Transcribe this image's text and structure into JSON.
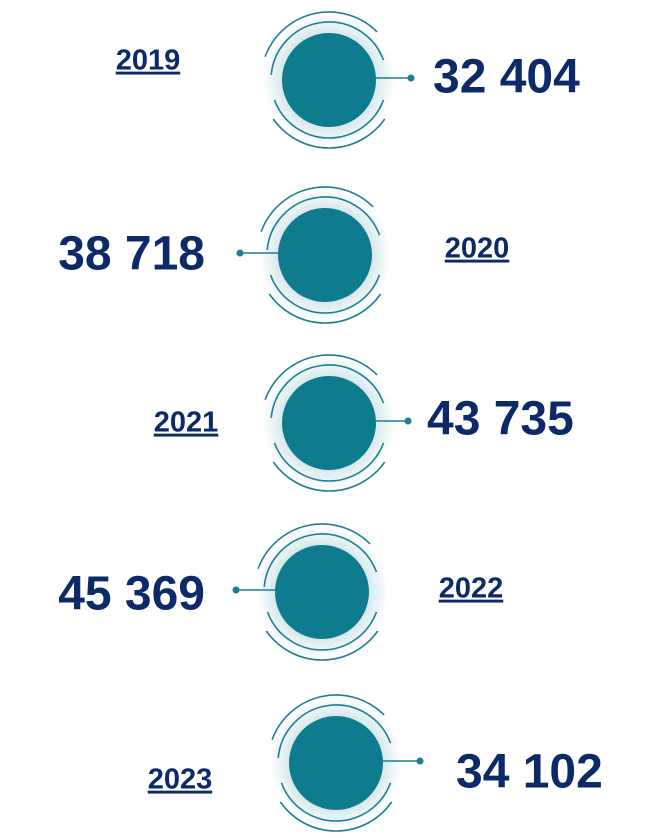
{
  "items": [
    {
      "year": "2019",
      "value": "32 404"
    },
    {
      "year": "2020",
      "value": "38 718"
    },
    {
      "year": "2021",
      "value": "43 735"
    },
    {
      "year": "2022",
      "value": "45 369"
    },
    {
      "year": "2023",
      "value": "34 102"
    }
  ]
}
